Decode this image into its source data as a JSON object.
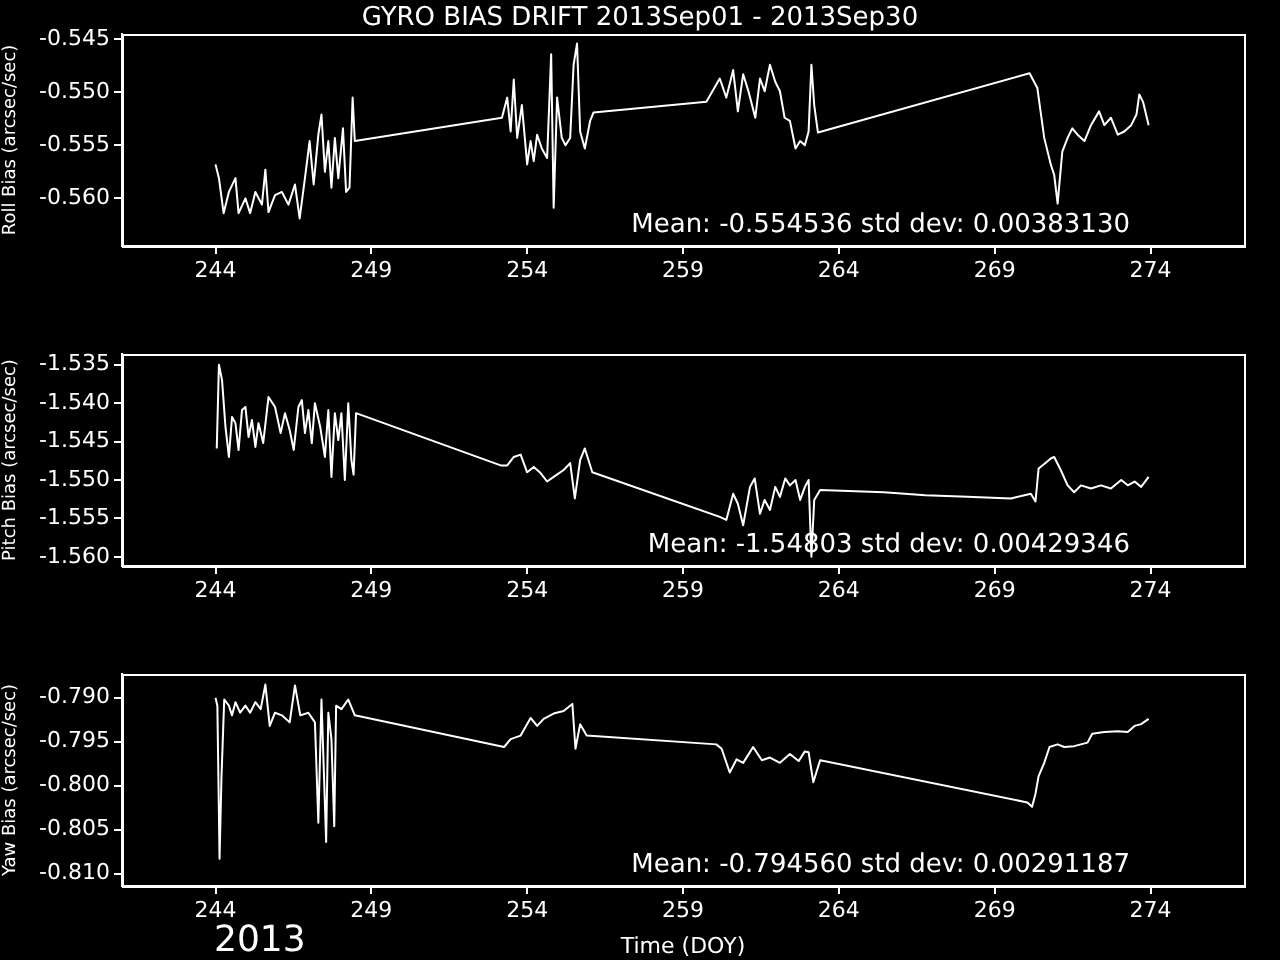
{
  "chart_data": [
    {
      "type": "line",
      "title": "GYRO BIAS DRIFT 2013Sep01 - 2013Sep30",
      "ylabel": "Roll Bias (arcsec/sec)",
      "xlim": [
        241,
        277
      ],
      "xticks": [
        244,
        249,
        254,
        259,
        264,
        269,
        274
      ],
      "ylim": [
        -0.5645,
        -0.5445
      ],
      "yticks": [
        -0.545,
        {
          "value": -0.55,
          "label": "-0.550"
        },
        -0.555,
        {
          "value": -0.56,
          "label": "-0.560"
        }
      ],
      "annotations": [
        "Mean: -0.554536 std dev: 0.00383130"
      ],
      "x": [
        244.0,
        244.11,
        244.26,
        244.43,
        244.64,
        244.74,
        244.96,
        245.11,
        245.28,
        245.49,
        245.6,
        245.7,
        245.91,
        246.13,
        246.34,
        246.55,
        246.7,
        246.87,
        247.02,
        247.15,
        247.3,
        247.4,
        247.51,
        247.62,
        247.72,
        247.83,
        247.94,
        248.09,
        248.19,
        248.3,
        248.4,
        248.47,
        253.19,
        253.36,
        253.47,
        253.57,
        253.68,
        253.83,
        254.0,
        254.11,
        254.21,
        254.32,
        254.47,
        254.64,
        254.77,
        254.85,
        254.96,
        255.11,
        255.23,
        255.38,
        255.49,
        255.6,
        255.7,
        255.85,
        256.02,
        256.13,
        259.75,
        260.18,
        260.39,
        260.61,
        260.76,
        260.93,
        261.1,
        261.32,
        261.47,
        261.62,
        261.79,
        261.96,
        262.11,
        262.26,
        262.43,
        262.61,
        262.76,
        262.91,
        263.03,
        263.12,
        263.21,
        263.33,
        270.12,
        270.37,
        270.59,
        270.8,
        270.91,
        271.02,
        271.17,
        271.34,
        271.49,
        271.66,
        271.88,
        272.09,
        272.35,
        272.52,
        272.73,
        272.95,
        273.16,
        273.38,
        273.55,
        273.64,
        273.76,
        273.94
      ],
      "series": [
        {
          "color": "#ffffff",
          "values": [
            -0.5568,
            -0.5581,
            -0.5614,
            -0.5594,
            -0.5581,
            -0.5614,
            -0.56,
            -0.5614,
            -0.5594,
            -0.5606,
            -0.5573,
            -0.5613,
            -0.5597,
            -0.5594,
            -0.5606,
            -0.5587,
            -0.5619,
            -0.5581,
            -0.5546,
            -0.5587,
            -0.554,
            -0.5521,
            -0.5575,
            -0.5546,
            -0.559,
            -0.5543,
            -0.5581,
            -0.5534,
            -0.5594,
            -0.559,
            -0.5505,
            -0.5546,
            -0.5524,
            -0.5505,
            -0.5537,
            -0.5488,
            -0.5543,
            -0.5512,
            -0.5568,
            -0.5546,
            -0.5565,
            -0.554,
            -0.5553,
            -0.5562,
            -0.5464,
            -0.5609,
            -0.5505,
            -0.5543,
            -0.555,
            -0.5543,
            -0.5474,
            -0.5454,
            -0.5537,
            -0.5553,
            -0.5527,
            -0.5519,
            -0.5509,
            -0.5487,
            -0.5505,
            -0.5479,
            -0.5518,
            -0.5483,
            -0.5499,
            -0.5524,
            -0.5487,
            -0.5499,
            -0.5474,
            -0.549,
            -0.5499,
            -0.5524,
            -0.5527,
            -0.5553,
            -0.5546,
            -0.555,
            -0.5537,
            -0.5474,
            -0.5512,
            -0.5538,
            -0.5482,
            -0.5496,
            -0.5543,
            -0.5568,
            -0.5578,
            -0.5605,
            -0.5556,
            -0.5543,
            -0.5534,
            -0.554,
            -0.5546,
            -0.5531,
            -0.5518,
            -0.5531,
            -0.5524,
            -0.554,
            -0.5537,
            -0.5531,
            -0.5521,
            -0.5502,
            -0.5509,
            -0.5531
          ]
        }
      ]
    },
    {
      "type": "line",
      "ylabel": "Pitch Bias (arcsec/sec)",
      "xlim": [
        241,
        277
      ],
      "xticks": [
        244,
        249,
        254,
        259,
        264,
        269,
        274
      ],
      "ylim": [
        -1.5612,
        -1.5336
      ],
      "yticks": [
        -1.535,
        {
          "value": -1.54,
          "label": "-1.540"
        },
        -1.545,
        {
          "value": -1.55,
          "label": "-1.550"
        },
        -1.555,
        {
          "value": -1.56,
          "label": "-1.560"
        }
      ],
      "annotations": [
        "Mean: -1.54803 std dev: 0.00429346"
      ],
      "x": [
        244.04,
        244.11,
        244.21,
        244.32,
        244.43,
        244.53,
        244.64,
        244.74,
        244.85,
        244.96,
        245.06,
        245.17,
        245.28,
        245.38,
        245.53,
        245.7,
        245.91,
        246.09,
        246.23,
        246.38,
        246.51,
        246.66,
        246.77,
        246.87,
        246.98,
        247.09,
        247.19,
        247.36,
        247.51,
        247.62,
        247.72,
        247.83,
        247.94,
        248.04,
        248.15,
        248.26,
        248.36,
        248.43,
        248.51,
        253.15,
        253.36,
        253.57,
        253.79,
        254.0,
        254.21,
        254.43,
        254.64,
        254.85,
        255.17,
        255.38,
        255.53,
        255.7,
        255.85,
        256.09,
        260.18,
        260.39,
        260.61,
        260.76,
        260.93,
        261.15,
        261.3,
        261.47,
        261.62,
        261.79,
        261.96,
        262.11,
        262.28,
        262.43,
        262.61,
        262.76,
        262.91,
        263.03,
        263.12,
        263.21,
        263.4,
        265.44,
        266.78,
        268.12,
        269.52,
        270.16,
        270.31,
        270.41,
        270.63,
        270.8,
        270.91,
        271.12,
        271.34,
        271.55,
        271.77,
        272.09,
        272.41,
        272.73,
        273.06,
        273.27,
        273.49,
        273.7,
        273.94
      ],
      "series": [
        {
          "color": "#ffffff",
          "values": [
            -1.5459,
            -1.535,
            -1.537,
            -1.5431,
            -1.547,
            -1.5418,
            -1.5426,
            -1.5461,
            -1.5409,
            -1.5405,
            -1.5444,
            -1.5422,
            -1.5457,
            -1.5426,
            -1.5452,
            -1.5392,
            -1.5405,
            -1.5439,
            -1.5413,
            -1.5435,
            -1.5461,
            -1.5405,
            -1.5396,
            -1.5439,
            -1.5409,
            -1.5452,
            -1.54,
            -1.5431,
            -1.547,
            -1.5409,
            -1.5496,
            -1.5413,
            -1.5448,
            -1.5413,
            -1.55,
            -1.54,
            -1.5474,
            -1.5493,
            -1.5413,
            -1.5481,
            -1.5481,
            -1.547,
            -1.5467,
            -1.549,
            -1.5483,
            -1.5491,
            -1.5502,
            -1.5496,
            -1.5487,
            -1.5478,
            -1.5524,
            -1.5474,
            -1.5459,
            -1.549,
            -1.5548,
            -1.5552,
            -1.5518,
            -1.5531,
            -1.5559,
            -1.5509,
            -1.5498,
            -1.5544,
            -1.5526,
            -1.5539,
            -1.5509,
            -1.5522,
            -1.5498,
            -1.5507,
            -1.55,
            -1.5526,
            -1.5509,
            -1.55,
            -1.56,
            -1.5526,
            -1.5513,
            -1.5516,
            -1.552,
            -1.5522,
            -1.5524,
            -1.5518,
            -1.5528,
            -1.5485,
            -1.5478,
            -1.5472,
            -1.547,
            -1.5487,
            -1.5507,
            -1.5516,
            -1.5507,
            -1.5511,
            -1.5507,
            -1.5511,
            -1.55,
            -1.5507,
            -1.5502,
            -1.5509,
            -1.5496
          ]
        }
      ]
    },
    {
      "type": "line",
      "ylabel": "Yaw Bias (arcsec/sec)",
      "xlabel": "Time (DOY)",
      "xlim": [
        241,
        277
      ],
      "xticks": [
        244,
        249,
        254,
        259,
        264,
        269,
        274
      ],
      "ylim": [
        -0.8114,
        -0.7873
      ],
      "yticks": [
        {
          "value": -0.79,
          "label": "-0.790"
        },
        -0.795,
        {
          "value": -0.8,
          "label": "-0.800"
        },
        -0.805,
        {
          "value": -0.81,
          "label": "-0.810"
        }
      ],
      "annotations": [
        "Mean: -0.794560 std dev: 0.00291187",
        "2013"
      ],
      "x": [
        244.0,
        244.06,
        244.13,
        244.19,
        244.28,
        244.43,
        244.53,
        244.64,
        244.79,
        244.96,
        245.11,
        245.28,
        245.45,
        245.6,
        245.74,
        245.91,
        246.13,
        246.38,
        246.55,
        246.72,
        246.98,
        247.19,
        247.3,
        247.4,
        247.49,
        247.55,
        247.62,
        247.72,
        247.81,
        247.87,
        248.04,
        248.26,
        248.47,
        253.26,
        253.47,
        253.79,
        254.11,
        254.32,
        254.53,
        254.85,
        255.17,
        255.45,
        255.55,
        255.7,
        255.91,
        260.07,
        260.24,
        260.5,
        260.72,
        260.93,
        261.25,
        261.53,
        261.79,
        262.11,
        262.43,
        262.71,
        262.91,
        263.03,
        263.18,
        263.4,
        270.05,
        270.2,
        270.31,
        270.41,
        270.59,
        270.76,
        271.02,
        271.23,
        271.55,
        271.98,
        272.13,
        272.52,
        272.95,
        273.27,
        273.49,
        273.7,
        273.94
      ],
      "series": [
        {
          "color": "#ffffff",
          "values": [
            -0.79,
            -0.7909,
            -0.8083,
            -0.7992,
            -0.7902,
            -0.7909,
            -0.792,
            -0.7905,
            -0.7917,
            -0.7909,
            -0.7917,
            -0.7905,
            -0.7913,
            -0.7885,
            -0.7932,
            -0.7917,
            -0.792,
            -0.7928,
            -0.7886,
            -0.792,
            -0.7917,
            -0.7928,
            -0.8042,
            -0.7902,
            -0.7998,
            -0.8064,
            -0.7917,
            -0.7947,
            -0.8046,
            -0.7909,
            -0.7913,
            -0.7902,
            -0.792,
            -0.7956,
            -0.7947,
            -0.7943,
            -0.7923,
            -0.7932,
            -0.7924,
            -0.7918,
            -0.7915,
            -0.7907,
            -0.7958,
            -0.793,
            -0.7943,
            -0.7953,
            -0.7958,
            -0.7985,
            -0.797,
            -0.7974,
            -0.7956,
            -0.7971,
            -0.7968,
            -0.7974,
            -0.7964,
            -0.7972,
            -0.7961,
            -0.7962,
            -0.7996,
            -0.7971,
            -0.8019,
            -0.8024,
            -0.8009,
            -0.7989,
            -0.7974,
            -0.7956,
            -0.7953,
            -0.7956,
            -0.7955,
            -0.7951,
            -0.7941,
            -0.7939,
            -0.7938,
            -0.7939,
            -0.7932,
            -0.793,
            -0.7924
          ]
        }
      ]
    }
  ]
}
